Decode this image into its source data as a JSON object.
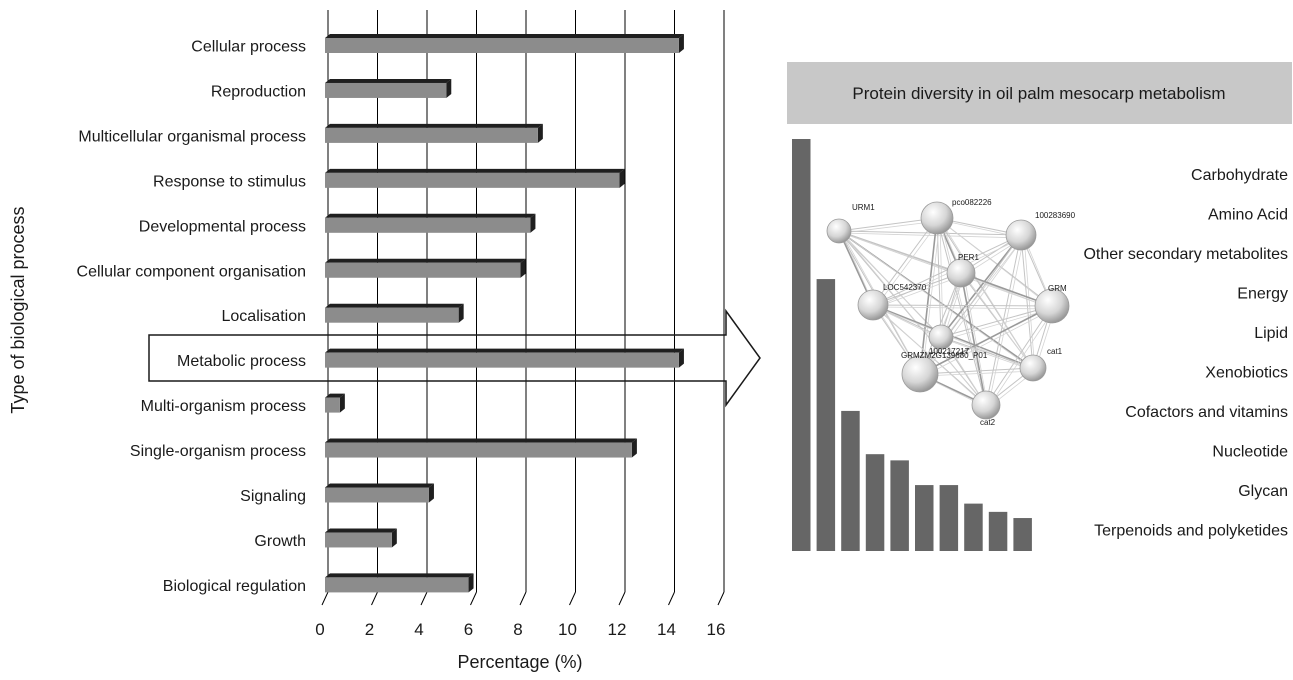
{
  "chart_data": [
    {
      "type": "bar",
      "orientation": "horizontal",
      "categories": [
        "Cellular process",
        "Reproduction",
        "Multicellular organismal process",
        "Response to stimulus",
        "Developmental process",
        "Cellular component organisation",
        "Localisation",
        "Metabolic process",
        "Multi-organism process",
        "Single-organism process",
        "Signaling",
        "Growth",
        "Biological regulation"
      ],
      "values": [
        14.3,
        4.9,
        8.6,
        11.9,
        8.3,
        7.9,
        5.4,
        14.3,
        0.6,
        12.4,
        4.2,
        2.7,
        5.8
      ],
      "xlabel": "Percentage (%)",
      "ylabel": "Type of biological process",
      "xlim": [
        0,
        16
      ],
      "xticks": [
        "0",
        "2",
        "4",
        "6",
        "8",
        "10",
        "12",
        "14",
        "16"
      ],
      "grid": "vertical",
      "highlighted_category": "Metabolic process",
      "colors": {
        "bar": "#8c8c8c",
        "bar_edge": "#1f1f1f",
        "grid": "#000000"
      }
    },
    {
      "type": "bar",
      "orientation": "vertical",
      "title": "Protein diversity in oil palm mesocarp metabolism",
      "categories": [
        "Carbohydrate",
        "Amino Acid",
        "Other secondary metabolites",
        "Energy",
        "Lipid",
        "Xenobiotics",
        "Cofactors and vitamins",
        "Nucleotide",
        "Glycan",
        "Terpenoids and polyketides"
      ],
      "values": [
        100,
        66,
        34,
        23.5,
        22,
        16,
        16,
        11.5,
        9.5,
        8
      ],
      "colors": {
        "bar": "#666666",
        "title_bg": "#c8c8c8"
      }
    }
  ],
  "network": {
    "node_labels": [
      "URM1",
      "pco082226",
      "100283690",
      "PER1",
      "LOC542370",
      "GRM",
      "100217217",
      "GRMZM2G139680_P01",
      "cat1",
      "cat2"
    ]
  }
}
